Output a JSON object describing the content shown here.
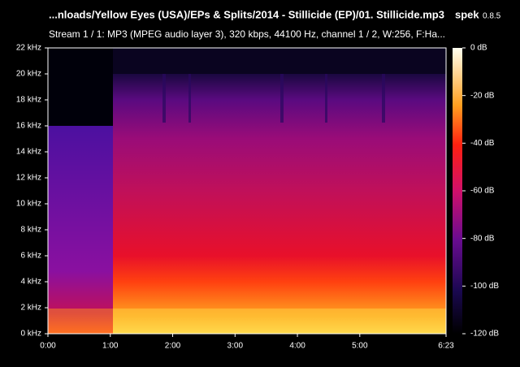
{
  "chart_data": {
    "type": "spectrogram",
    "title": "...nloads/Yellow Eyes (USA)/EPs & Splits/2014 - Stillicide (EP)/01. Stillicide.mp3",
    "app_name": "spek",
    "app_version": "0.8.5",
    "subtitle": "Stream 1 / 1: MP3 (MPEG audio layer 3), 320 kbps, 44100 Hz, channel 1 / 2, W:256, F:Ha...",
    "xlim": [
      0,
      383
    ],
    "xticks": [
      {
        "value": 0,
        "label": "0:00"
      },
      {
        "value": 60,
        "label": "1:00"
      },
      {
        "value": 120,
        "label": "2:00"
      },
      {
        "value": 180,
        "label": "3:00"
      },
      {
        "value": 240,
        "label": "4:00"
      },
      {
        "value": 300,
        "label": "5:00"
      },
      {
        "value": 383,
        "label": "6:23"
      }
    ],
    "ylim": [
      0,
      22
    ],
    "yticks": [
      {
        "value": 0,
        "label": "0 kHz"
      },
      {
        "value": 2,
        "label": "2 kHz"
      },
      {
        "value": 4,
        "label": "4 kHz"
      },
      {
        "value": 6,
        "label": "6 kHz"
      },
      {
        "value": 8,
        "label": "8 kHz"
      },
      {
        "value": 10,
        "label": "10 kHz"
      },
      {
        "value": 12,
        "label": "12 kHz"
      },
      {
        "value": 14,
        "label": "14 kHz"
      },
      {
        "value": 16,
        "label": "16 kHz"
      },
      {
        "value": 18,
        "label": "18 kHz"
      },
      {
        "value": 20,
        "label": "20 kHz"
      },
      {
        "value": 22,
        "label": "22 kHz"
      }
    ],
    "colorbar_lim": [
      -120,
      0
    ],
    "colorbar_ticks": [
      {
        "value": 0,
        "label": "0 dB"
      },
      {
        "value": -20,
        "label": "-20 dB"
      },
      {
        "value": -40,
        "label": "-40 dB"
      },
      {
        "value": -60,
        "label": "-60 dB"
      },
      {
        "value": -80,
        "label": "-80 dB"
      },
      {
        "value": -100,
        "label": "-100 dB"
      },
      {
        "value": -120,
        "label": "-120 dB"
      }
    ]
  }
}
